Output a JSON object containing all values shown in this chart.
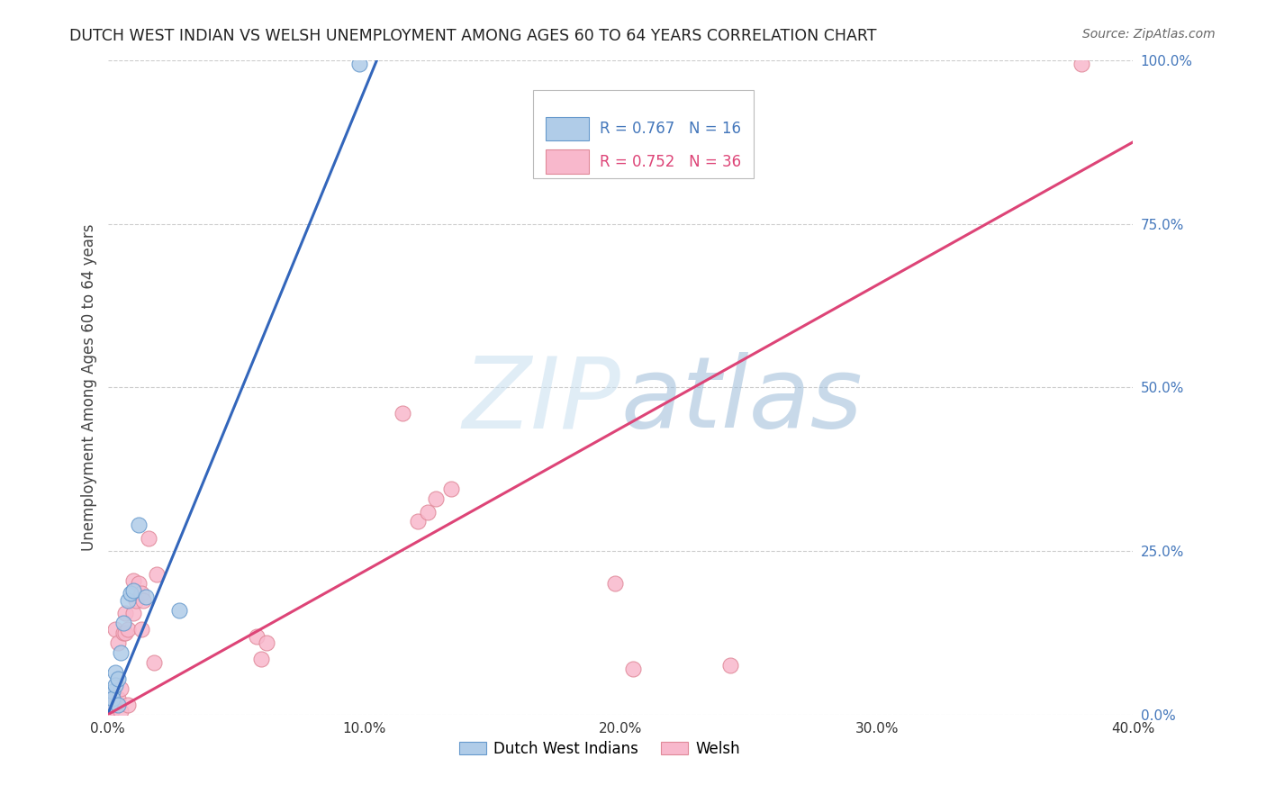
{
  "title": "DUTCH WEST INDIAN VS WELSH UNEMPLOYMENT AMONG AGES 60 TO 64 YEARS CORRELATION CHART",
  "source": "Source: ZipAtlas.com",
  "ylabel": "Unemployment Among Ages 60 to 64 years",
  "xlim": [
    0.0,
    0.4
  ],
  "ylim": [
    0.0,
    1.0
  ],
  "xticks": [
    0.0,
    0.1,
    0.2,
    0.3,
    0.4
  ],
  "xtick_labels": [
    "0.0%",
    "10.0%",
    "20.0%",
    "30.0%",
    "40.0%"
  ],
  "yticks": [
    0.0,
    0.25,
    0.5,
    0.75,
    1.0
  ],
  "ytick_labels": [
    "0.0%",
    "25.0%",
    "50.0%",
    "75.0%",
    "100.0%"
  ],
  "legend1_label": "R = 0.767   N = 16",
  "legend2_label": "R = 0.752   N = 36",
  "legend1_color": "#4477bb",
  "legend2_color": "#dd4477",
  "dot_color_blue": "#b0cce8",
  "dot_color_pink": "#f8b8cc",
  "line_color_blue": "#3366bb",
  "line_color_pink": "#dd4477",
  "bottom_legend1": "Dutch West Indians",
  "bottom_legend2": "Welsh",
  "dwi_points": [
    [
      0.001,
      0.015
    ],
    [
      0.002,
      0.035
    ],
    [
      0.002,
      0.025
    ],
    [
      0.003,
      0.065
    ],
    [
      0.003,
      0.045
    ],
    [
      0.004,
      0.015
    ],
    [
      0.004,
      0.055
    ],
    [
      0.005,
      0.095
    ],
    [
      0.006,
      0.14
    ],
    [
      0.008,
      0.175
    ],
    [
      0.009,
      0.185
    ],
    [
      0.01,
      0.19
    ],
    [
      0.012,
      0.29
    ],
    [
      0.015,
      0.18
    ],
    [
      0.028,
      0.16
    ],
    [
      0.098,
      0.994
    ]
  ],
  "welsh_points": [
    [
      0.001,
      0.01
    ],
    [
      0.002,
      0.008
    ],
    [
      0.002,
      0.025
    ],
    [
      0.003,
      0.015
    ],
    [
      0.003,
      0.13
    ],
    [
      0.004,
      0.025
    ],
    [
      0.004,
      0.11
    ],
    [
      0.005,
      0.04
    ],
    [
      0.005,
      0.005
    ],
    [
      0.006,
      0.125
    ],
    [
      0.007,
      0.155
    ],
    [
      0.007,
      0.125
    ],
    [
      0.008,
      0.015
    ],
    [
      0.008,
      0.13
    ],
    [
      0.01,
      0.205
    ],
    [
      0.01,
      0.155
    ],
    [
      0.011,
      0.175
    ],
    [
      0.012,
      0.2
    ],
    [
      0.013,
      0.185
    ],
    [
      0.013,
      0.13
    ],
    [
      0.014,
      0.175
    ],
    [
      0.016,
      0.27
    ],
    [
      0.018,
      0.08
    ],
    [
      0.019,
      0.215
    ],
    [
      0.058,
      0.12
    ],
    [
      0.062,
      0.11
    ],
    [
      0.06,
      0.085
    ],
    [
      0.115,
      0.46
    ],
    [
      0.121,
      0.295
    ],
    [
      0.125,
      0.31
    ],
    [
      0.128,
      0.33
    ],
    [
      0.134,
      0.345
    ],
    [
      0.198,
      0.2
    ],
    [
      0.205,
      0.07
    ],
    [
      0.243,
      0.075
    ],
    [
      0.38,
      0.994
    ]
  ],
  "dwi_line_x": [
    0.0,
    0.105
  ],
  "dwi_line_y": [
    0.0,
    1.0
  ],
  "welsh_line_x": [
    0.0,
    0.4
  ],
  "welsh_line_y": [
    0.0,
    0.875
  ],
  "background_color": "#ffffff",
  "grid_color": "#cccccc",
  "title_color": "#222222",
  "axis_label_color": "#444444",
  "right_tick_color": "#4477bb",
  "bottom_tick_color": "#333333"
}
